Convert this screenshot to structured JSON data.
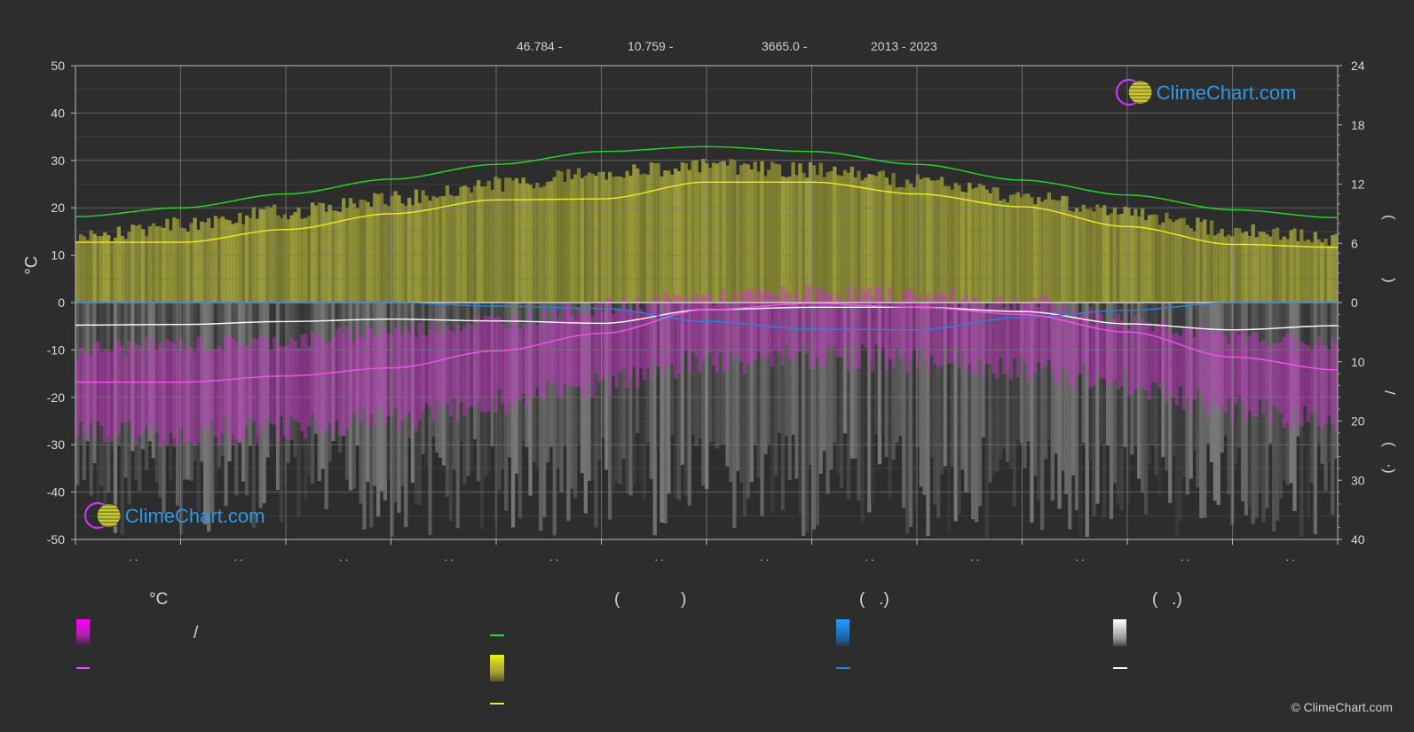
{
  "header": {
    "latitude": "46.784 -",
    "longitude": "10.759 -",
    "elevation": "3665.0 -",
    "years": "2013 - 2023"
  },
  "copyright": "© ClimeChart.com",
  "logo_text": "ClimeChart.com",
  "left_axis": {
    "title": "°C"
  },
  "right_axis": {
    "upper_marks": [
      "(",
      ")"
    ],
    "lower_marks": [
      "/",
      "(",
      "·",
      ")"
    ]
  },
  "x_tick_label": ". .",
  "legend": {
    "col1_title": "°C",
    "col1_slash": "/",
    "col2_title_open": "(",
    "col2_title_close": ")",
    "col3_title": "(   .)",
    "col4_title": "(   .)"
  },
  "colors": {
    "background": "#2d2d2d",
    "daylight": "#22dd22",
    "sunshine": "#eeee22",
    "sunshine_fill": "#b4b43a",
    "temperature_max": "#ff55ff",
    "temperature_mean": "#ee55ee",
    "precipitation": "#2288dd",
    "snow": "#ffffff",
    "logo_blue": "#2b98e8"
  },
  "chart_data": {
    "type": "area",
    "months": 12,
    "left_axis": {
      "min": -50,
      "max": 50,
      "ticks": [
        50,
        40,
        30,
        20,
        10,
        0,
        -10,
        -20,
        -30,
        -40,
        -50
      ]
    },
    "right_axis_upper": {
      "min": 0,
      "max": 24,
      "ticks": [
        24,
        18,
        12,
        6,
        0
      ]
    },
    "right_axis_lower": {
      "min": 0,
      "max": 40,
      "ticks": [
        0,
        10,
        20,
        30,
        40
      ]
    },
    "series": [
      {
        "key": "daylight",
        "x": [
          0,
          1,
          2,
          3,
          4,
          5,
          6,
          7,
          8,
          9,
          10,
          11,
          12
        ],
        "values": [
          8.7,
          9.6,
          11.0,
          12.5,
          14.0,
          15.3,
          15.8,
          15.3,
          14.0,
          12.4,
          10.9,
          9.4,
          8.6
        ]
      },
      {
        "key": "sunshine_daily",
        "x": [
          0,
          1,
          2,
          3,
          4,
          5,
          6,
          7,
          8,
          9,
          10,
          11,
          12
        ],
        "values": [
          6.1,
          6.1,
          7.4,
          9.0,
          10.4,
          10.5,
          12.2,
          12.2,
          11.0,
          9.7,
          7.7,
          5.9,
          5.6
        ]
      },
      {
        "key": "sunshine_max",
        "x": [
          0,
          1,
          2,
          3,
          4,
          5,
          6,
          7,
          8,
          9,
          10,
          11,
          12
        ],
        "values": [
          7.3,
          8.7,
          10.0,
          11.3,
          12.8,
          14.0,
          14.6,
          14.2,
          13.1,
          11.6,
          9.8,
          8.2,
          7.2
        ]
      },
      {
        "key": "temperature_mean",
        "x": [
          0,
          1,
          2,
          3,
          4,
          5,
          6,
          7,
          8,
          9,
          10,
          11,
          12
        ],
        "values": [
          -16.8,
          -16.8,
          -15.5,
          -13.8,
          -10.2,
          -6.5,
          -1.5,
          -0.2,
          -1.0,
          -2.5,
          -6.2,
          -11.5,
          -14.2
        ]
      },
      {
        "key": "temperature_max",
        "x": [
          0,
          1,
          2,
          3,
          4,
          5,
          6,
          7,
          8,
          9,
          10,
          11,
          12
        ],
        "values": [
          -10,
          -9,
          -8,
          -6,
          -4,
          -1,
          1,
          2,
          1.5,
          0,
          -4,
          -7,
          -9
        ]
      },
      {
        "key": "precipitation_daily",
        "x": [
          0,
          1,
          2,
          3,
          4,
          5,
          6,
          7,
          8,
          9,
          10,
          11,
          12
        ],
        "values": [
          0,
          0,
          0,
          0,
          0.6,
          1.0,
          3.2,
          4.5,
          4.6,
          2.5,
          1.3,
          0,
          0
        ]
      },
      {
        "key": "snow_daily",
        "x": [
          0,
          1,
          2,
          3,
          4,
          5,
          6,
          7,
          8,
          9,
          10,
          11,
          12
        ],
        "values": [
          3.8,
          3.7,
          3.2,
          2.8,
          3.1,
          3.5,
          1.2,
          0.8,
          0.8,
          1.5,
          3.6,
          4.6,
          3.9
        ]
      }
    ]
  }
}
